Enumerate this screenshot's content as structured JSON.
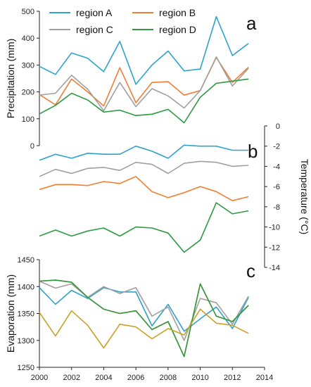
{
  "chart_data": [
    {
      "panel": "a",
      "type": "line",
      "ylabel": "Precipitation (mm)",
      "ylim": [
        0,
        500
      ],
      "yticks": [
        0,
        100,
        200,
        300,
        400,
        500
      ],
      "xlim": [
        2000,
        2014
      ],
      "legend_position": "top-left",
      "x": [
        2000,
        2001,
        2002,
        2003,
        2004,
        2005,
        2006,
        2007,
        2008,
        2009,
        2010,
        2011,
        2012,
        2013
      ],
      "series": [
        {
          "name": "region A",
          "color": "#2ea3c9",
          "values": [
            295,
            265,
            345,
            325,
            275,
            388,
            228,
            300,
            352,
            278,
            285,
            480,
            335,
            380
          ]
        },
        {
          "name": "region B",
          "color": "#f07e34",
          "values": [
            190,
            152,
            248,
            200,
            148,
            290,
            160,
            235,
            238,
            188,
            205,
            328,
            235,
            292
          ]
        },
        {
          "name": "region C",
          "color": "#a0a0a0",
          "values": [
            188,
            195,
            262,
            210,
            130,
            235,
            145,
            212,
            185,
            140,
            205,
            330,
            222,
            288
          ]
        },
        {
          "name": "region D",
          "color": "#2e9a43",
          "values": [
            118,
            150,
            195,
            170,
            125,
            132,
            112,
            117,
            135,
            85,
            180,
            232,
            240,
            248
          ]
        }
      ]
    },
    {
      "panel": "b",
      "type": "line",
      "ylabel": "Temperature (°C)",
      "ylim": [
        -14,
        0
      ],
      "yticks": [
        0,
        -2,
        -4,
        -6,
        -8,
        -10,
        -12,
        -14
      ],
      "xlim": [
        2000,
        2014
      ],
      "x": [
        2000,
        2001,
        2002,
        2003,
        2004,
        2005,
        2006,
        2007,
        2008,
        2009,
        2010,
        2011,
        2012,
        2013
      ],
      "series": [
        {
          "color": "#2ea3c9",
          "values": [
            -3.4,
            -2.8,
            -3.2,
            -2.7,
            -2.8,
            -2.8,
            -2.0,
            -2.5,
            -3.2,
            -1.9,
            -2.0,
            -2.0,
            -2.4,
            -2.4
          ]
        },
        {
          "color": "#a0a0a0",
          "values": [
            -5.0,
            -4.3,
            -4.7,
            -4.2,
            -4.1,
            -4.4,
            -3.6,
            -3.8,
            -4.7,
            -3.7,
            -3.5,
            -3.6,
            -4.0,
            -3.9
          ]
        },
        {
          "color": "#f07e34",
          "values": [
            -6.3,
            -5.8,
            -5.8,
            -5.9,
            -5.5,
            -5.7,
            -5.0,
            -6.5,
            -7.1,
            -6.6,
            -6.0,
            -6.5,
            -7.4,
            -7.0
          ]
        },
        {
          "color": "#2e9a43",
          "values": [
            -10.9,
            -10.3,
            -10.9,
            -10.4,
            -10.1,
            -10.9,
            -10.0,
            -10.1,
            -10.6,
            -12.5,
            -11.3,
            -7.6,
            -8.7,
            -8.4
          ]
        }
      ]
    },
    {
      "panel": "c",
      "type": "line",
      "ylabel": "Evaporation (mm)",
      "ylim": [
        1250,
        1450
      ],
      "yticks": [
        1250,
        1300,
        1350,
        1400,
        1450
      ],
      "xlim": [
        2000,
        2014
      ],
      "xticks": [
        2000,
        2002,
        2004,
        2006,
        2008,
        2010,
        2012,
        2014
      ],
      "x": [
        2000,
        2001,
        2002,
        2003,
        2004,
        2005,
        2006,
        2007,
        2008,
        2009,
        2010,
        2011,
        2012,
        2013
      ],
      "series": [
        {
          "color": "#2ea3c9",
          "values": [
            1398,
            1367,
            1393,
            1378,
            1398,
            1390,
            1390,
            1327,
            1367,
            1317,
            1340,
            1362,
            1322,
            1380
          ]
        },
        {
          "color": "#a0a0a0",
          "values": [
            1410,
            1397,
            1405,
            1380,
            1400,
            1387,
            1398,
            1345,
            1362,
            1300,
            1378,
            1370,
            1330,
            1382
          ]
        },
        {
          "color": "#f07e34",
          "values": [
            1410,
            1412,
            1408,
            1380,
            1358,
            1350,
            1355,
            1320,
            1335,
            1270,
            1405,
            1345,
            1335,
            1365
          ]
        },
        {
          "color": "#2e9a43",
          "values": [
            1410,
            1412,
            1408,
            1380,
            1358,
            1350,
            1355,
            1320,
            1335,
            1270,
            1405,
            1345,
            1335,
            1365
          ]
        },
        {
          "color": "#c9a227",
          "values": [
            1352,
            1308,
            1355,
            1328,
            1286,
            1330,
            1325,
            1303,
            1322,
            1310,
            1358,
            1332,
            1328,
            1313
          ]
        }
      ]
    }
  ]
}
